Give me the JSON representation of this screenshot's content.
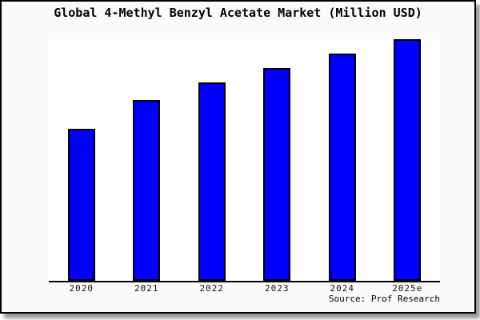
{
  "page": {
    "background": "#ffffff",
    "frame_background": "#fafaf8",
    "frame_border_color": "#000000",
    "shadow_color": "#999999"
  },
  "chart_data": {
    "type": "bar",
    "title": "Global 4-Methyl Benzyl Acetate Market (Million USD)",
    "categories": [
      "2020",
      "2021",
      "2022",
      "2023",
      "2024",
      "2025e"
    ],
    "values": [
      63,
      75,
      82,
      88,
      94,
      100
    ],
    "value_note": "No y-axis ticks shown; values estimated as relative index with 2025e bar = 100",
    "xlabel": "",
    "ylabel": "",
    "ylim": [
      0,
      100
    ],
    "grid": false,
    "legend": false,
    "bar_color": "#0000ff",
    "bar_edge_color": "#000000",
    "axis_line_color": "#000000",
    "source_note": "Source: Prof Research"
  }
}
